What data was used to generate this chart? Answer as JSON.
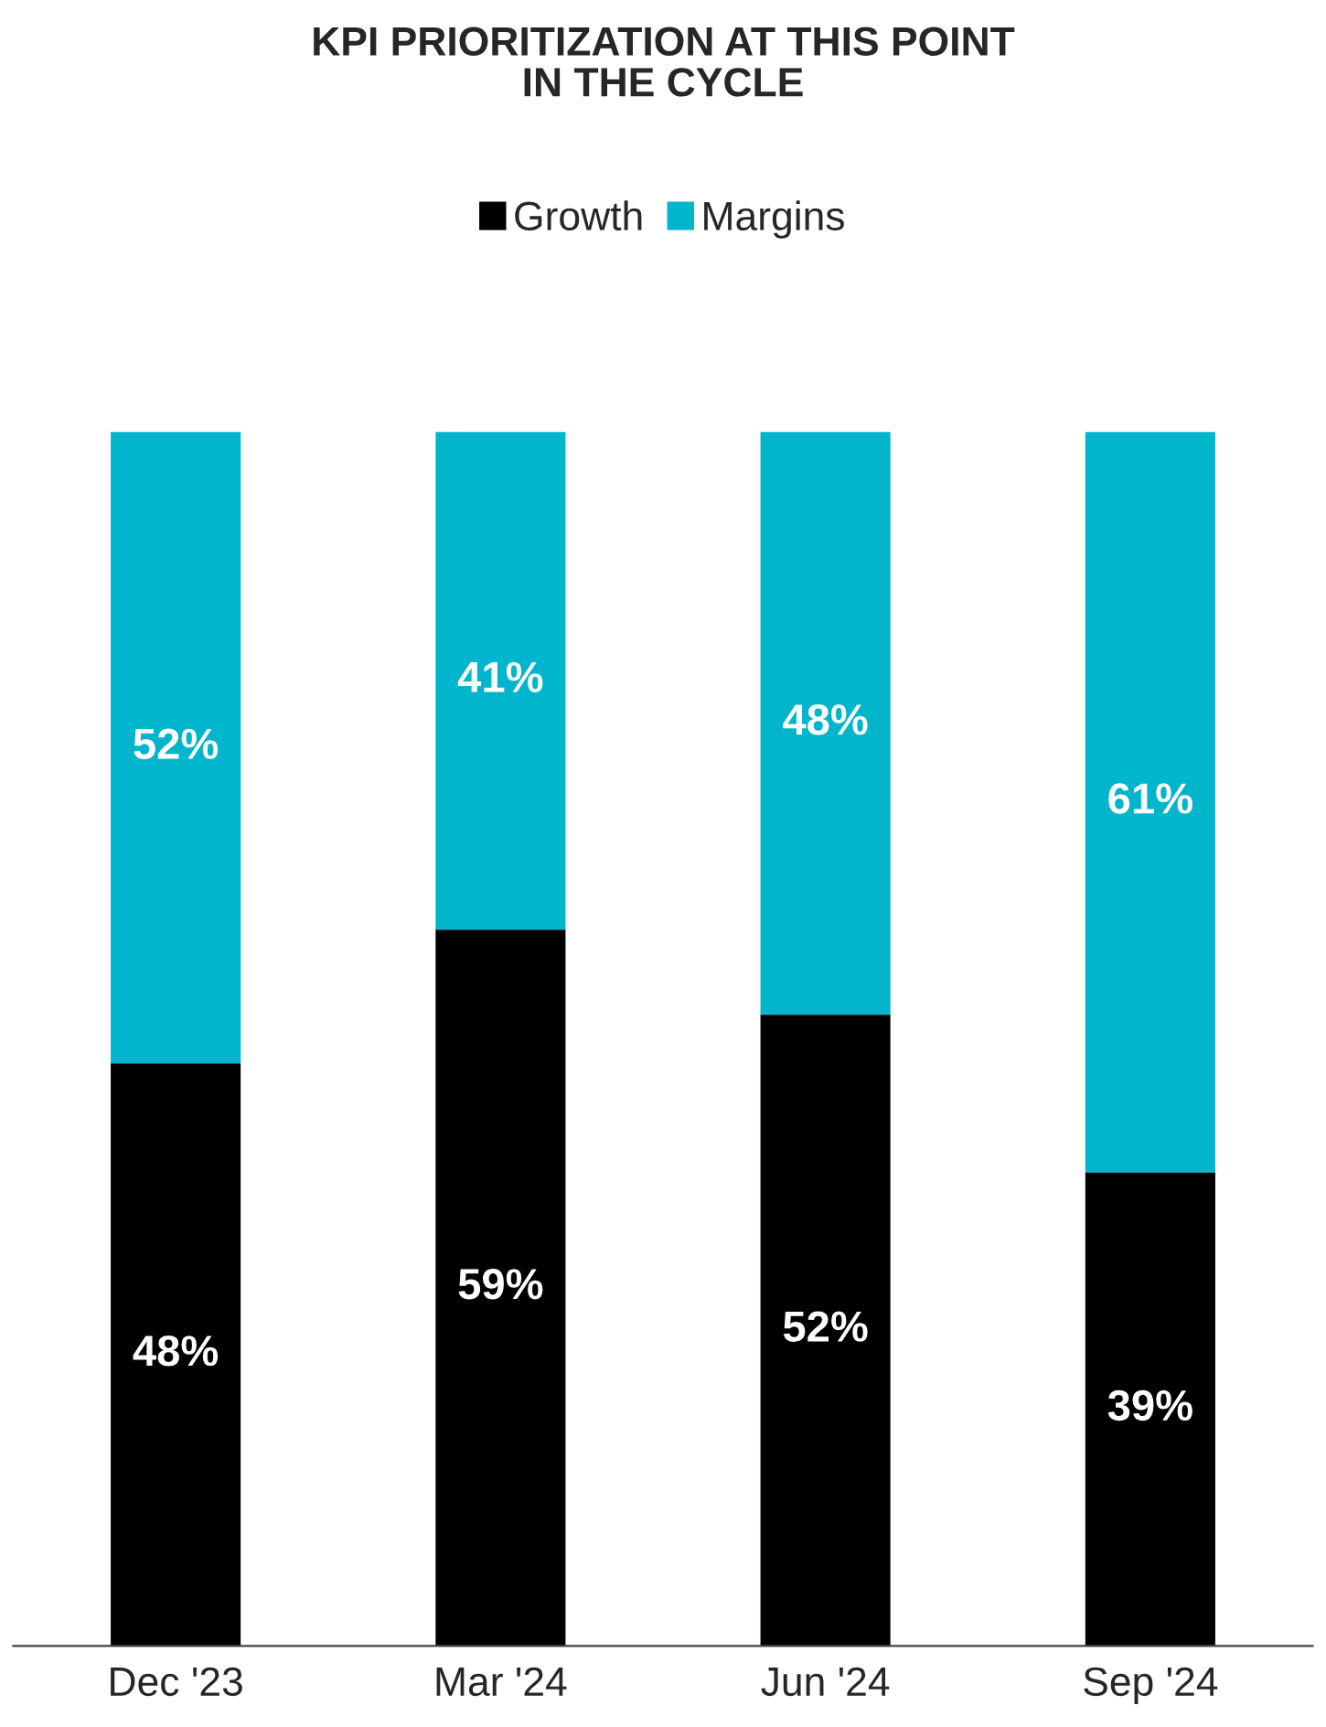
{
  "chart_data": {
    "type": "bar",
    "title": "KPI PRIORITIZATION AT THIS POINT\nIN THE CYCLE",
    "categories": [
      "Dec '23",
      "Mar '24",
      "Jun '24",
      "Sep '24"
    ],
    "stacked": true,
    "legend": "top",
    "grid": false,
    "series": [
      {
        "name": "Growth",
        "color": "#000000",
        "values": [
          48,
          59,
          52,
          39
        ],
        "value_labels": [
          "48%",
          "59%",
          "52%",
          "39%"
        ]
      },
      {
        "name": "Margins",
        "color": "#00b5cc",
        "values": [
          52,
          41,
          48,
          61
        ],
        "value_labels": [
          "52%",
          "41%",
          "48%",
          "61%"
        ]
      }
    ]
  }
}
